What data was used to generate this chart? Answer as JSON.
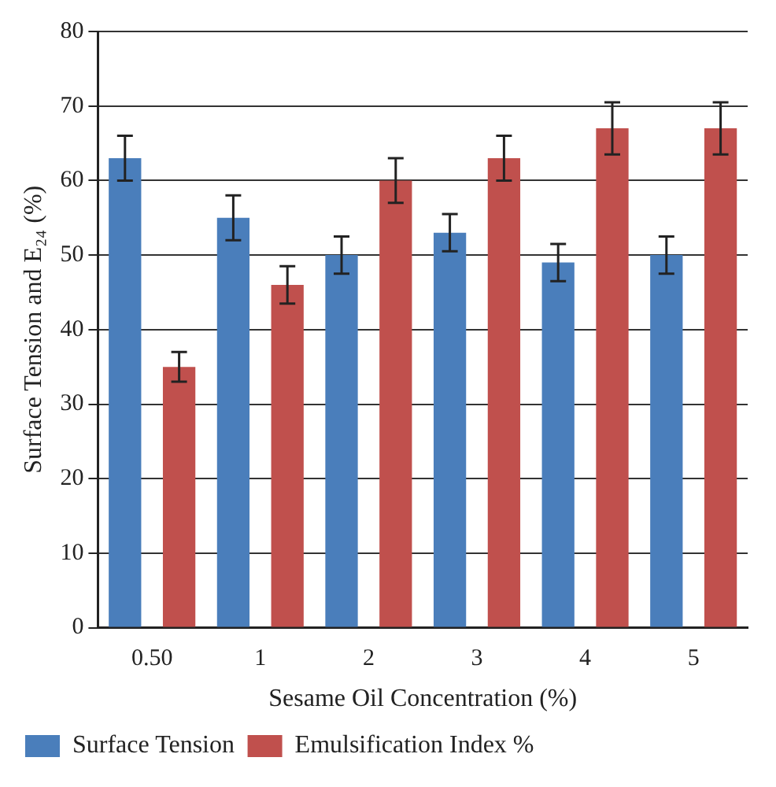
{
  "chart_data": {
    "type": "bar",
    "xlabel": "Sesame Oil Concentration (%)",
    "ylabel": "Surface Tension and E₂₄ (%)",
    "categories": [
      "0.50",
      "1",
      "2",
      "3",
      "4",
      "5"
    ],
    "series": [
      {
        "name": "Surface Tension",
        "color": "#4a7ebb",
        "values": [
          63,
          55,
          50,
          53,
          49,
          50
        ],
        "errors": [
          3,
          3,
          2.5,
          2.5,
          2.5,
          2.5
        ]
      },
      {
        "name": "Emulsification Index %",
        "color": "#c0504d",
        "values": [
          35,
          46,
          60,
          63,
          67,
          67
        ],
        "errors": [
          2,
          2.5,
          3,
          3,
          3.5,
          3.5
        ]
      }
    ],
    "ylim": [
      0,
      80
    ],
    "yticks": [
      0,
      10,
      20,
      30,
      40,
      50,
      60,
      70,
      80
    ],
    "grid": "y",
    "legend": "bottom left"
  }
}
